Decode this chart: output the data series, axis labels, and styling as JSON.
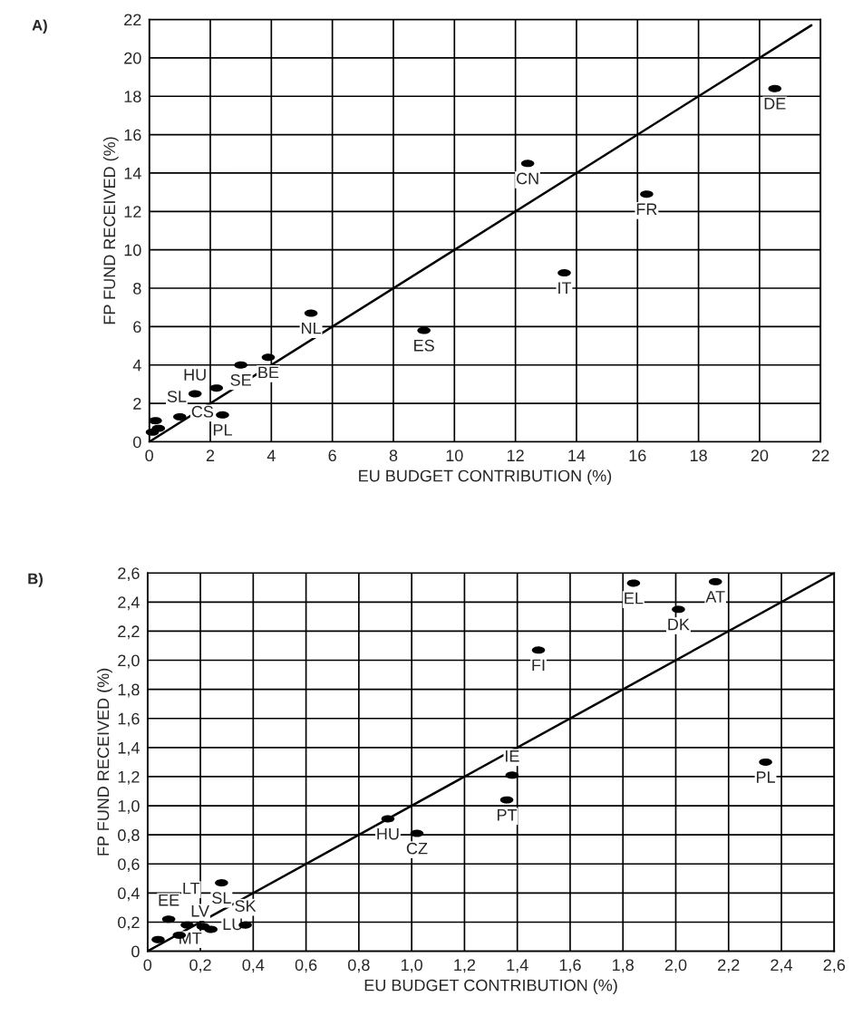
{
  "chart_data": [
    {
      "type": "scatter",
      "xlabel": "EU BUDGET CONTRIBUTION (%)",
      "ylabel": "FP FUND RECEIVED (%)",
      "xlim": [
        0,
        22
      ],
      "ylim": [
        0,
        22
      ],
      "xticks": [
        0,
        2,
        4,
        6,
        8,
        10,
        12,
        14,
        16,
        18,
        20,
        22
      ],
      "yticks": [
        0,
        2,
        4,
        6,
        8,
        10,
        12,
        14,
        16,
        18,
        20,
        22
      ],
      "grid": true,
      "line_style": "solid",
      "series": [
        {
          "marker": "circle",
          "color": "#000000",
          "x": [
            20.5,
            12.4,
            16.3,
            13.6,
            5.3,
            9.0,
            3.9,
            3.0,
            1.5,
            2.2,
            2.4,
            1.0,
            0.2,
            0.3,
            0.1
          ],
          "values": [
            18.4,
            14.5,
            12.9,
            8.8,
            6.7,
            5.8,
            4.4,
            4.0,
            2.5,
            2.8,
            1.4,
            1.3,
            1.1,
            0.7,
            0.5
          ]
        },
        {
          "type": "line",
          "color": "#000000",
          "x": [
            0,
            21.7
          ],
          "values": [
            0,
            21.7
          ]
        }
      ],
      "annotations": [
        "A)",
        {
          "text": "DE",
          "x": 20.5,
          "y": 18.4
        },
        {
          "text": "CN",
          "x": 12.4,
          "y": 14.5
        },
        {
          "text": "FR",
          "x": 16.3,
          "y": 12.9
        },
        {
          "text": "IT",
          "x": 13.6,
          "y": 8.8
        },
        {
          "text": "NL",
          "x": 5.3,
          "y": 6.7
        },
        {
          "text": "ES",
          "x": 9.0,
          "y": 5.8
        },
        {
          "text": "BE",
          "x": 3.9,
          "y": 4.4
        },
        {
          "text": "SE",
          "x": 3.0,
          "y": 4.0
        },
        {
          "text": "HU",
          "x": 1.5,
          "y": 2.5
        },
        {
          "text": "PL",
          "x": 2.4,
          "y": 1.4
        },
        {
          "text": "CS",
          "x": 1.0,
          "y": 1.3
        },
        {
          "text": "SL",
          "x": 0.2,
          "y": 1.1
        }
      ]
    },
    {
      "type": "scatter",
      "xlabel": "EU BUDGET CONTRIBUTION (%)",
      "ylabel": "FP FUND RECEIVED (%)",
      "xlim": [
        0,
        2.6
      ],
      "ylim": [
        0,
        2.6
      ],
      "xticks": [
        0,
        {
          "value": 0.2,
          "label": "0,2"
        },
        {
          "value": 0.4,
          "label": "0,4"
        },
        {
          "value": 0.6,
          "label": "0,6"
        },
        {
          "value": 0.8,
          "label": "0,8"
        },
        {
          "value": 1.0,
          "label": "1,0"
        },
        {
          "value": 1.2,
          "label": "1,2"
        },
        {
          "value": 1.4,
          "label": "1,4"
        },
        {
          "value": 1.6,
          "label": "1,6"
        },
        {
          "value": 1.8,
          "label": "1,8"
        },
        {
          "value": 2.0,
          "label": "2,0"
        },
        {
          "value": 2.2,
          "label": "2,2"
        },
        {
          "value": 2.4,
          "label": "2,4"
        },
        {
          "value": 2.6,
          "label": "2,6"
        }
      ],
      "yticks": [
        0,
        {
          "value": 0.2,
          "label": "0,2"
        },
        {
          "value": 0.4,
          "label": "0,4"
        },
        {
          "value": 0.6,
          "label": "0,6"
        },
        {
          "value": 0.8,
          "label": "0,8"
        },
        {
          "value": 1.0,
          "label": "1,0"
        },
        {
          "value": 1.2,
          "label": "1,2"
        },
        {
          "value": 1.4,
          "label": "1,4"
        },
        {
          "value": 1.6,
          "label": "1,6"
        },
        {
          "value": 1.8,
          "label": "1,8"
        },
        {
          "value": 2.0,
          "label": "2,0"
        },
        {
          "value": 2.2,
          "label": "2,2"
        },
        {
          "value": 2.4,
          "label": "2,4"
        },
        {
          "value": 2.6,
          "label": "2,6"
        }
      ],
      "grid": true,
      "line_style": "solid",
      "series": [
        {
          "marker": "circle",
          "color": "#000000",
          "x": [
            1.84,
            2.15,
            2.01,
            1.48,
            2.34,
            1.38,
            1.36,
            0.91,
            1.02,
            0.28,
            0.08,
            0.15,
            0.12,
            0.04,
            0.37,
            0.24,
            0.21
          ],
          "values": [
            2.53,
            2.54,
            2.35,
            2.07,
            1.3,
            1.21,
            1.04,
            0.91,
            0.81,
            0.47,
            0.22,
            0.18,
            0.11,
            0.08,
            0.18,
            0.15,
            0.17
          ]
        },
        {
          "type": "line",
          "color": "#000000",
          "x": [
            0,
            2.6
          ],
          "values": [
            0,
            2.6
          ]
        }
      ],
      "annotations": [
        "B)",
        {
          "text": "EL",
          "x": 1.84,
          "y": 2.53
        },
        {
          "text": "AT",
          "x": 2.15,
          "y": 2.54
        },
        {
          "text": "DK",
          "x": 2.01,
          "y": 2.35
        },
        {
          "text": "FI",
          "x": 1.48,
          "y": 2.07
        },
        {
          "text": "PL",
          "x": 2.34,
          "y": 1.3
        },
        {
          "text": "IE",
          "x": 1.38,
          "y": 1.21
        },
        {
          "text": "PT",
          "x": 1.36,
          "y": 1.04
        },
        {
          "text": "HU",
          "x": 0.91,
          "y": 0.91
        },
        {
          "text": "CZ",
          "x": 1.02,
          "y": 0.81
        },
        {
          "text": "SL",
          "x": 0.28,
          "y": 0.47
        },
        {
          "text": "EE",
          "x": 0.08,
          "y": 0.22
        },
        {
          "text": "LT",
          "x": 0.15,
          "y": 0.18
        },
        {
          "text": "LV",
          "x": 0.12,
          "y": 0.11
        },
        {
          "text": "MT",
          "x": 0.04,
          "y": 0.08
        },
        {
          "text": "SK",
          "x": 0.37,
          "y": 0.18
        },
        {
          "text": "LU",
          "x": 0.24,
          "y": 0.15
        }
      ]
    }
  ]
}
